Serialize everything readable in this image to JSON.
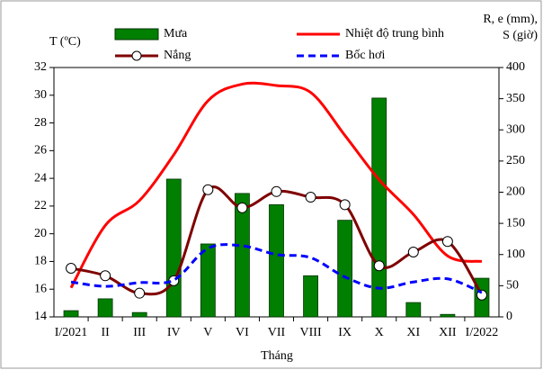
{
  "chart_data": {
    "type": "combo",
    "xlabel": "Tháng",
    "ylabel": "T (ºC)",
    "y2label": [
      "R, e (mm),",
      "S (giờ)"
    ],
    "categories": [
      "I/2021",
      "II",
      "III",
      "IV",
      "V",
      "VI",
      "VII",
      "VIII",
      "IX",
      "X",
      "XI",
      "XII",
      "I/2022"
    ],
    "ylim": [
      14,
      32
    ],
    "yticks": [
      14,
      16,
      18,
      20,
      22,
      24,
      26,
      28,
      30,
      32
    ],
    "y2lim": [
      0,
      400
    ],
    "y2ticks": [
      0,
      50,
      100,
      150,
      200,
      250,
      300,
      350,
      400
    ],
    "series": [
      {
        "name": "Mưa",
        "type": "bar",
        "axis": "y2",
        "color": "#007f00",
        "values": [
          10,
          29,
          7,
          221,
          117,
          198,
          180,
          66,
          155,
          351,
          23,
          4,
          62
        ]
      },
      {
        "name": "Nhiệt độ trung bình",
        "type": "line",
        "axis": "y",
        "color": "#ff0000",
        "values": [
          16.1,
          20.6,
          22.4,
          25.7,
          29.6,
          30.8,
          30.7,
          30.2,
          27.1,
          23.9,
          21.4,
          18.4,
          18.0
        ]
      },
      {
        "name": "Nắng",
        "type": "line",
        "axis": "y2",
        "color": "#7f0000",
        "marker": true,
        "values": [
          78,
          66,
          38,
          58,
          204,
          175,
          201,
          192,
          180,
          82,
          104,
          121,
          35
        ]
      },
      {
        "name": "Bốc hơi",
        "type": "line",
        "axis": "y2",
        "color": "#0000ff",
        "dashed": true,
        "values": [
          56,
          49,
          55,
          59,
          110,
          114,
          100,
          95,
          64,
          46,
          56,
          61,
          39
        ]
      }
    ]
  }
}
